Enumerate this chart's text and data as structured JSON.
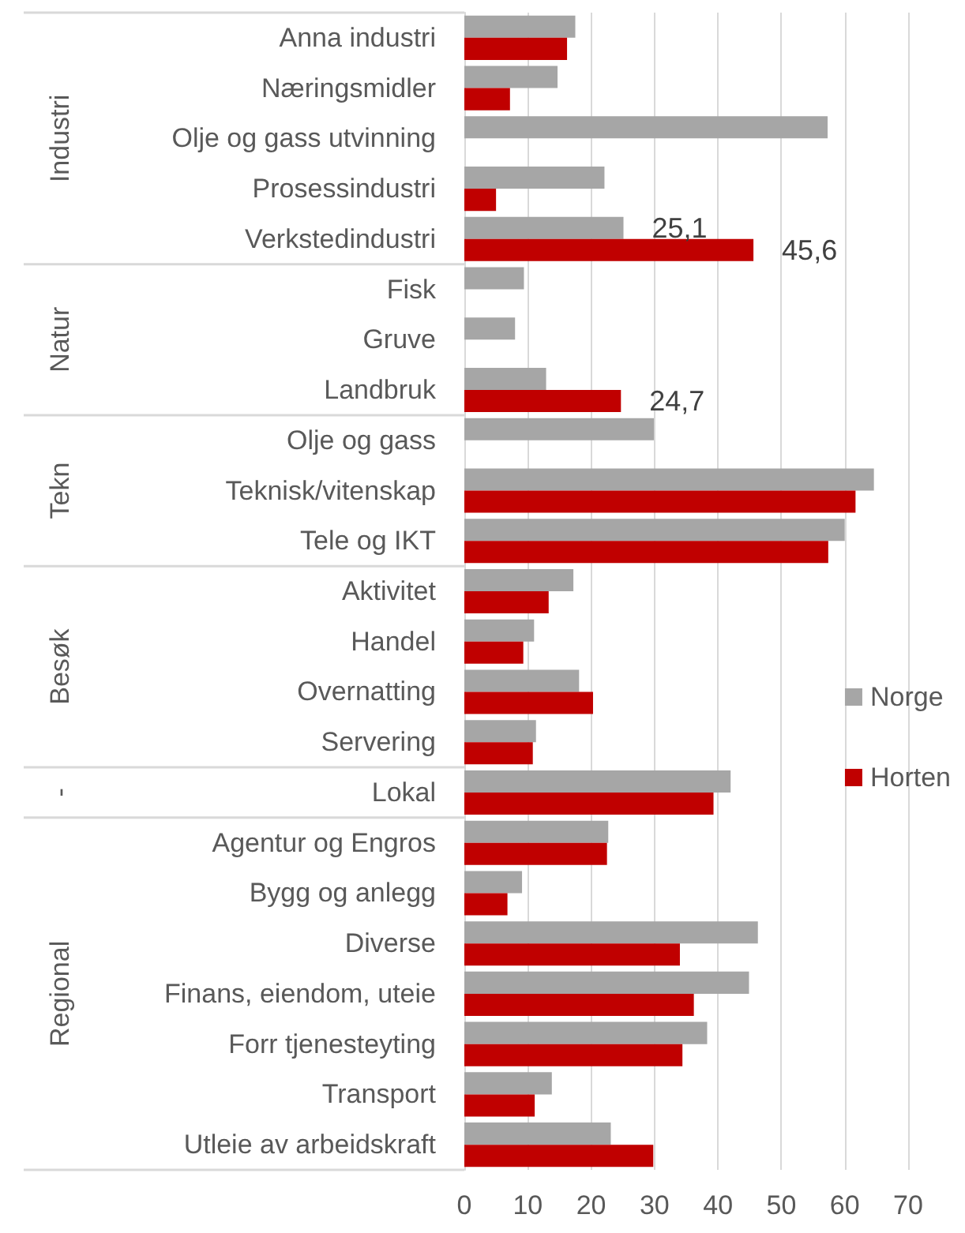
{
  "chart_data": {
    "type": "bar",
    "orientation": "horizontal",
    "categories": [
      "Anna industri",
      "Næringsmidler",
      "Olje og gass utvinning",
      "Prosessindustri",
      "Verkstedindustri",
      "Fisk",
      "Gruve",
      "Landbruk",
      "Olje og gass",
      "Teknisk/vitenskap",
      "Tele og IKT",
      "Aktivitet",
      "Handel",
      "Overnatting",
      "Servering",
      "Lokal",
      "Agentur og Engros",
      "Bygg og anlegg",
      "Diverse",
      "Finans, eiendom, uteie",
      "Forr tjenesteyting",
      "Transport",
      "Utleie av arbeidskraft"
    ],
    "series": [
      {
        "name": "Norge",
        "color": "#a6a6a6",
        "values": [
          17.5,
          14.7,
          57.3,
          22.1,
          25.1,
          9.4,
          8.0,
          12.9,
          29.9,
          64.6,
          60.0,
          17.2,
          11.0,
          18.1,
          11.3,
          42.0,
          22.7,
          9.1,
          46.3,
          44.9,
          38.3,
          13.8,
          23.1
        ],
        "value_labels": [
          null,
          null,
          null,
          null,
          "25,1",
          null,
          null,
          null,
          null,
          null,
          null,
          null,
          null,
          null,
          null,
          null,
          null,
          null,
          null,
          null,
          null,
          null,
          null
        ]
      },
      {
        "name": "Horten",
        "color": "#c00000",
        "values": [
          16.2,
          7.2,
          null,
          5.0,
          45.6,
          null,
          null,
          24.7,
          null,
          61.7,
          57.4,
          13.3,
          9.3,
          20.3,
          10.8,
          39.3,
          22.5,
          6.8,
          34.0,
          36.2,
          34.4,
          11.1,
          29.8
        ],
        "value_labels": [
          null,
          null,
          null,
          null,
          "45,6",
          null,
          null,
          "24,7",
          null,
          null,
          null,
          null,
          null,
          null,
          null,
          null,
          null,
          null,
          null,
          null,
          null,
          null,
          null
        ]
      }
    ],
    "xlim": [
      0,
      70
    ],
    "xticks": [
      0,
      10,
      20,
      30,
      40,
      50,
      60,
      70
    ],
    "grid": "x",
    "legend": "right",
    "annotations": [
      "Industri",
      "Natur",
      "Tekn",
      "Besøk",
      "-",
      "Regional"
    ]
  }
}
